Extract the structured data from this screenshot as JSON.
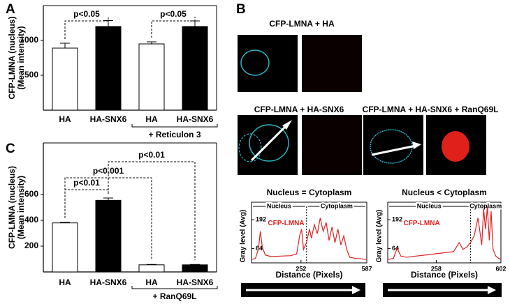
{
  "panels": [
    "A",
    "B",
    "C"
  ],
  "chart_data": [
    {
      "type": "bar",
      "y_label": [
        "CFP-LMNA (nucleus)",
        "(Mean intensity)"
      ],
      "categories": [
        "HA",
        "HA-SNX6",
        "HA",
        "HA-SNX6"
      ],
      "values": [
        890,
        1200,
        950,
        1200
      ],
      "errors": [
        70,
        85,
        30,
        80
      ],
      "colors": [
        "#ffffff",
        "#000000",
        "#ffffff",
        "#000000"
      ],
      "ylim": [
        0,
        1500
      ],
      "yticks": [
        500,
        1000
      ],
      "significance": [
        {
          "label": "p<0.05",
          "from": 0,
          "to": 1
        },
        {
          "label": "p<0.05",
          "from": 2,
          "to": 3
        }
      ],
      "group": {
        "label": "+ Reticulon 3",
        "from": 2,
        "to": 3
      }
    },
    {
      "type": "bar",
      "y_label": [
        "CFP-LMNA (nucleus)",
        "(Mean intensity)"
      ],
      "categories": [
        "HA",
        "HA-SNX6",
        "HA",
        "HA-SNX6"
      ],
      "values": [
        380,
        555,
        55,
        55
      ],
      "errors": [
        5,
        18,
        3,
        3
      ],
      "colors": [
        "#ffffff",
        "#000000",
        "#ffffff",
        "#000000"
      ],
      "ylim": [
        0,
        1000
      ],
      "yticks": [
        200,
        400,
        600
      ],
      "significance": [
        {
          "label": "p<0.01",
          "from": 0,
          "to": 1
        },
        {
          "label": "p<0.001",
          "from": 0,
          "to": 2
        },
        {
          "label": "p<0.01",
          "from": 1,
          "to": 3
        }
      ],
      "group": {
        "label": "+ RanQ69L",
        "from": 2,
        "to": 3
      }
    },
    {
      "type": "line",
      "title": "Nucleus = Cytoplasm",
      "x_label": "Distance (Pixels)",
      "y_label": "Gray level (Avg)",
      "regions": [
        "Nucleus",
        "Cytoplasm"
      ],
      "divider": 280,
      "xlim": [
        0,
        587
      ],
      "xticks": [
        252,
        587
      ],
      "ylim": [
        0,
        270
      ],
      "yticks": [
        64,
        192
      ],
      "x": [
        0,
        20,
        35,
        45,
        55,
        70,
        100,
        150,
        200,
        230,
        245,
        255,
        265,
        280,
        295,
        305,
        320,
        335,
        350,
        365,
        380,
        395,
        410,
        425,
        440,
        455,
        470,
        485,
        500,
        530,
        560,
        587
      ],
      "series": [
        {
          "name": "CFP-LMNA",
          "color": "#e02020",
          "values": [
            15,
            20,
            60,
            140,
            70,
            35,
            28,
            30,
            32,
            40,
            120,
            150,
            60,
            90,
            150,
            110,
            170,
            130,
            200,
            140,
            180,
            100,
            160,
            90,
            150,
            80,
            120,
            60,
            25,
            20,
            18,
            15
          ]
        }
      ]
    },
    {
      "type": "line",
      "title": "Nucleus < Cytoplasm",
      "x_label": "Distance (Pixels)",
      "y_label": "Gray level (Avg)",
      "regions": [
        "Nucleus",
        "Cytoplasm"
      ],
      "divider": 440,
      "xlim": [
        0,
        602
      ],
      "xticks": [
        258,
        602
      ],
      "ylim": [
        0,
        270
      ],
      "yticks": [
        64,
        192
      ],
      "x": [
        0,
        30,
        50,
        70,
        100,
        150,
        200,
        250,
        300,
        350,
        380,
        400,
        420,
        440,
        460,
        480,
        500,
        510,
        520,
        530,
        540,
        550,
        560,
        575,
        590,
        602
      ],
      "series": [
        {
          "name": "CFP-LMNA",
          "color": "#e02020",
          "values": [
            15,
            20,
            65,
            30,
            25,
            30,
            35,
            40,
            45,
            50,
            90,
            60,
            70,
            90,
            120,
            200,
            80,
            240,
            150,
            250,
            100,
            230,
            60,
            30,
            20,
            15
          ]
        }
      ]
    }
  ],
  "images": [
    "CFP-LMNA + HA",
    "CFP-LMNA + HA-SNX6",
    "CFP-LMNA + HA-SNX6 + RanQ69L"
  ]
}
